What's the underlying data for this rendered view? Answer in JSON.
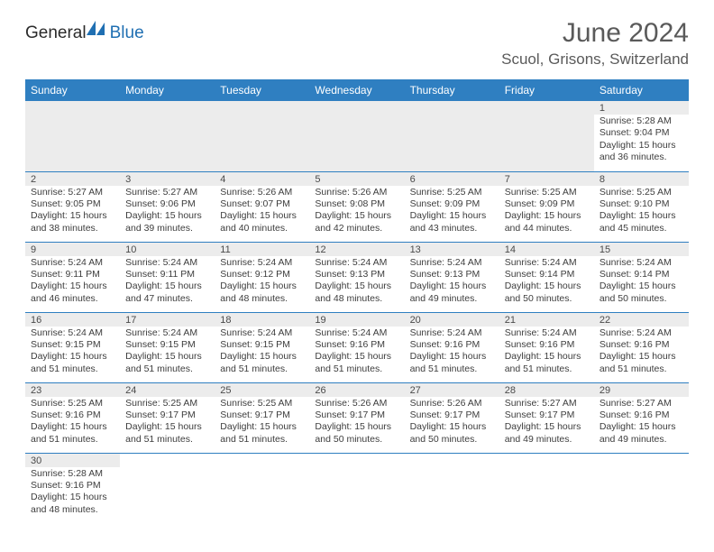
{
  "brand": {
    "name1": "General",
    "name2": "Blue"
  },
  "title": "June 2024",
  "location": "Scuol, Grisons, Switzerland",
  "colors": {
    "header_bg": "#2f7fc1",
    "header_text": "#ffffff",
    "daynum_bg": "#ececec",
    "rule": "#2f7fc1",
    "body_text": "#3d3d3d",
    "title_text": "#5a5a5a",
    "brand_blue": "#1f6fb2"
  },
  "weekdays": [
    "Sunday",
    "Monday",
    "Tuesday",
    "Wednesday",
    "Thursday",
    "Friday",
    "Saturday"
  ],
  "layout": {
    "first_weekday_index": 6,
    "days_in_month": 30
  },
  "days": {
    "1": {
      "sunrise": "5:28 AM",
      "sunset": "9:04 PM",
      "daylight_h": 15,
      "daylight_m": 36
    },
    "2": {
      "sunrise": "5:27 AM",
      "sunset": "9:05 PM",
      "daylight_h": 15,
      "daylight_m": 38
    },
    "3": {
      "sunrise": "5:27 AM",
      "sunset": "9:06 PM",
      "daylight_h": 15,
      "daylight_m": 39
    },
    "4": {
      "sunrise": "5:26 AM",
      "sunset": "9:07 PM",
      "daylight_h": 15,
      "daylight_m": 40
    },
    "5": {
      "sunrise": "5:26 AM",
      "sunset": "9:08 PM",
      "daylight_h": 15,
      "daylight_m": 42
    },
    "6": {
      "sunrise": "5:25 AM",
      "sunset": "9:09 PM",
      "daylight_h": 15,
      "daylight_m": 43
    },
    "7": {
      "sunrise": "5:25 AM",
      "sunset": "9:09 PM",
      "daylight_h": 15,
      "daylight_m": 44
    },
    "8": {
      "sunrise": "5:25 AM",
      "sunset": "9:10 PM",
      "daylight_h": 15,
      "daylight_m": 45
    },
    "9": {
      "sunrise": "5:24 AM",
      "sunset": "9:11 PM",
      "daylight_h": 15,
      "daylight_m": 46
    },
    "10": {
      "sunrise": "5:24 AM",
      "sunset": "9:11 PM",
      "daylight_h": 15,
      "daylight_m": 47
    },
    "11": {
      "sunrise": "5:24 AM",
      "sunset": "9:12 PM",
      "daylight_h": 15,
      "daylight_m": 48
    },
    "12": {
      "sunrise": "5:24 AM",
      "sunset": "9:13 PM",
      "daylight_h": 15,
      "daylight_m": 48
    },
    "13": {
      "sunrise": "5:24 AM",
      "sunset": "9:13 PM",
      "daylight_h": 15,
      "daylight_m": 49
    },
    "14": {
      "sunrise": "5:24 AM",
      "sunset": "9:14 PM",
      "daylight_h": 15,
      "daylight_m": 50
    },
    "15": {
      "sunrise": "5:24 AM",
      "sunset": "9:14 PM",
      "daylight_h": 15,
      "daylight_m": 50
    },
    "16": {
      "sunrise": "5:24 AM",
      "sunset": "9:15 PM",
      "daylight_h": 15,
      "daylight_m": 51
    },
    "17": {
      "sunrise": "5:24 AM",
      "sunset": "9:15 PM",
      "daylight_h": 15,
      "daylight_m": 51
    },
    "18": {
      "sunrise": "5:24 AM",
      "sunset": "9:15 PM",
      "daylight_h": 15,
      "daylight_m": 51
    },
    "19": {
      "sunrise": "5:24 AM",
      "sunset": "9:16 PM",
      "daylight_h": 15,
      "daylight_m": 51
    },
    "20": {
      "sunrise": "5:24 AM",
      "sunset": "9:16 PM",
      "daylight_h": 15,
      "daylight_m": 51
    },
    "21": {
      "sunrise": "5:24 AM",
      "sunset": "9:16 PM",
      "daylight_h": 15,
      "daylight_m": 51
    },
    "22": {
      "sunrise": "5:24 AM",
      "sunset": "9:16 PM",
      "daylight_h": 15,
      "daylight_m": 51
    },
    "23": {
      "sunrise": "5:25 AM",
      "sunset": "9:16 PM",
      "daylight_h": 15,
      "daylight_m": 51
    },
    "24": {
      "sunrise": "5:25 AM",
      "sunset": "9:17 PM",
      "daylight_h": 15,
      "daylight_m": 51
    },
    "25": {
      "sunrise": "5:25 AM",
      "sunset": "9:17 PM",
      "daylight_h": 15,
      "daylight_m": 51
    },
    "26": {
      "sunrise": "5:26 AM",
      "sunset": "9:17 PM",
      "daylight_h": 15,
      "daylight_m": 50
    },
    "27": {
      "sunrise": "5:26 AM",
      "sunset": "9:17 PM",
      "daylight_h": 15,
      "daylight_m": 50
    },
    "28": {
      "sunrise": "5:27 AM",
      "sunset": "9:17 PM",
      "daylight_h": 15,
      "daylight_m": 49
    },
    "29": {
      "sunrise": "5:27 AM",
      "sunset": "9:16 PM",
      "daylight_h": 15,
      "daylight_m": 49
    },
    "30": {
      "sunrise": "5:28 AM",
      "sunset": "9:16 PM",
      "daylight_h": 15,
      "daylight_m": 48
    }
  },
  "labels": {
    "sunrise_prefix": "Sunrise: ",
    "sunset_prefix": "Sunset: ",
    "daylight_prefix": "Daylight: ",
    "hours_word": " hours",
    "and_word": "and ",
    "minutes_word": " minutes."
  }
}
